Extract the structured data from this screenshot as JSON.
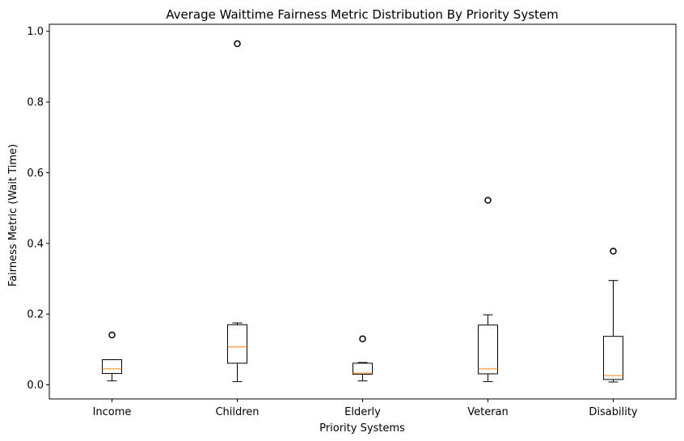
{
  "chart_data": {
    "type": "box",
    "title": "Average Waittime Fairness Metric Distribution By Priority System",
    "xlabel": "Priority Systems",
    "ylabel": "Fairness Metric (Wait Time)",
    "ylim": [
      -0.04,
      1.02
    ],
    "yticks": [
      "0.0",
      "0.2",
      "0.4",
      "0.6",
      "0.8",
      "1.0"
    ],
    "ytick_values": [
      0.0,
      0.2,
      0.4,
      0.6,
      0.8,
      1.0
    ],
    "grid": false,
    "legend": "none",
    "colors": {
      "box": "#000000",
      "median": "#ff7f0e",
      "outlier": "#000000"
    },
    "categories": [
      "Income",
      "Children",
      "Elderly",
      "Veteran",
      "Disability"
    ],
    "boxes": [
      {
        "category": "Income",
        "whisker_low": 0.011,
        "q1": 0.032,
        "median": 0.045,
        "q3": 0.071,
        "whisker_high": 0.071,
        "outliers": [
          0.141
        ]
      },
      {
        "category": "Children",
        "whisker_low": 0.009,
        "q1": 0.061,
        "median": 0.107,
        "q3": 0.17,
        "whisker_high": 0.175,
        "outliers": [
          0.965
        ]
      },
      {
        "category": "Elderly",
        "whisker_low": 0.011,
        "q1": 0.03,
        "median": 0.033,
        "q3": 0.061,
        "whisker_high": 0.063,
        "outliers": [
          0.13
        ]
      },
      {
        "category": "Veteran",
        "whisker_low": 0.009,
        "q1": 0.031,
        "median": 0.045,
        "q3": 0.169,
        "whisker_high": 0.198,
        "outliers": [
          0.522
        ]
      },
      {
        "category": "Disability",
        "whisker_low": 0.008,
        "q1": 0.015,
        "median": 0.026,
        "q3": 0.137,
        "whisker_high": 0.295,
        "outliers": [
          0.378
        ]
      }
    ]
  }
}
